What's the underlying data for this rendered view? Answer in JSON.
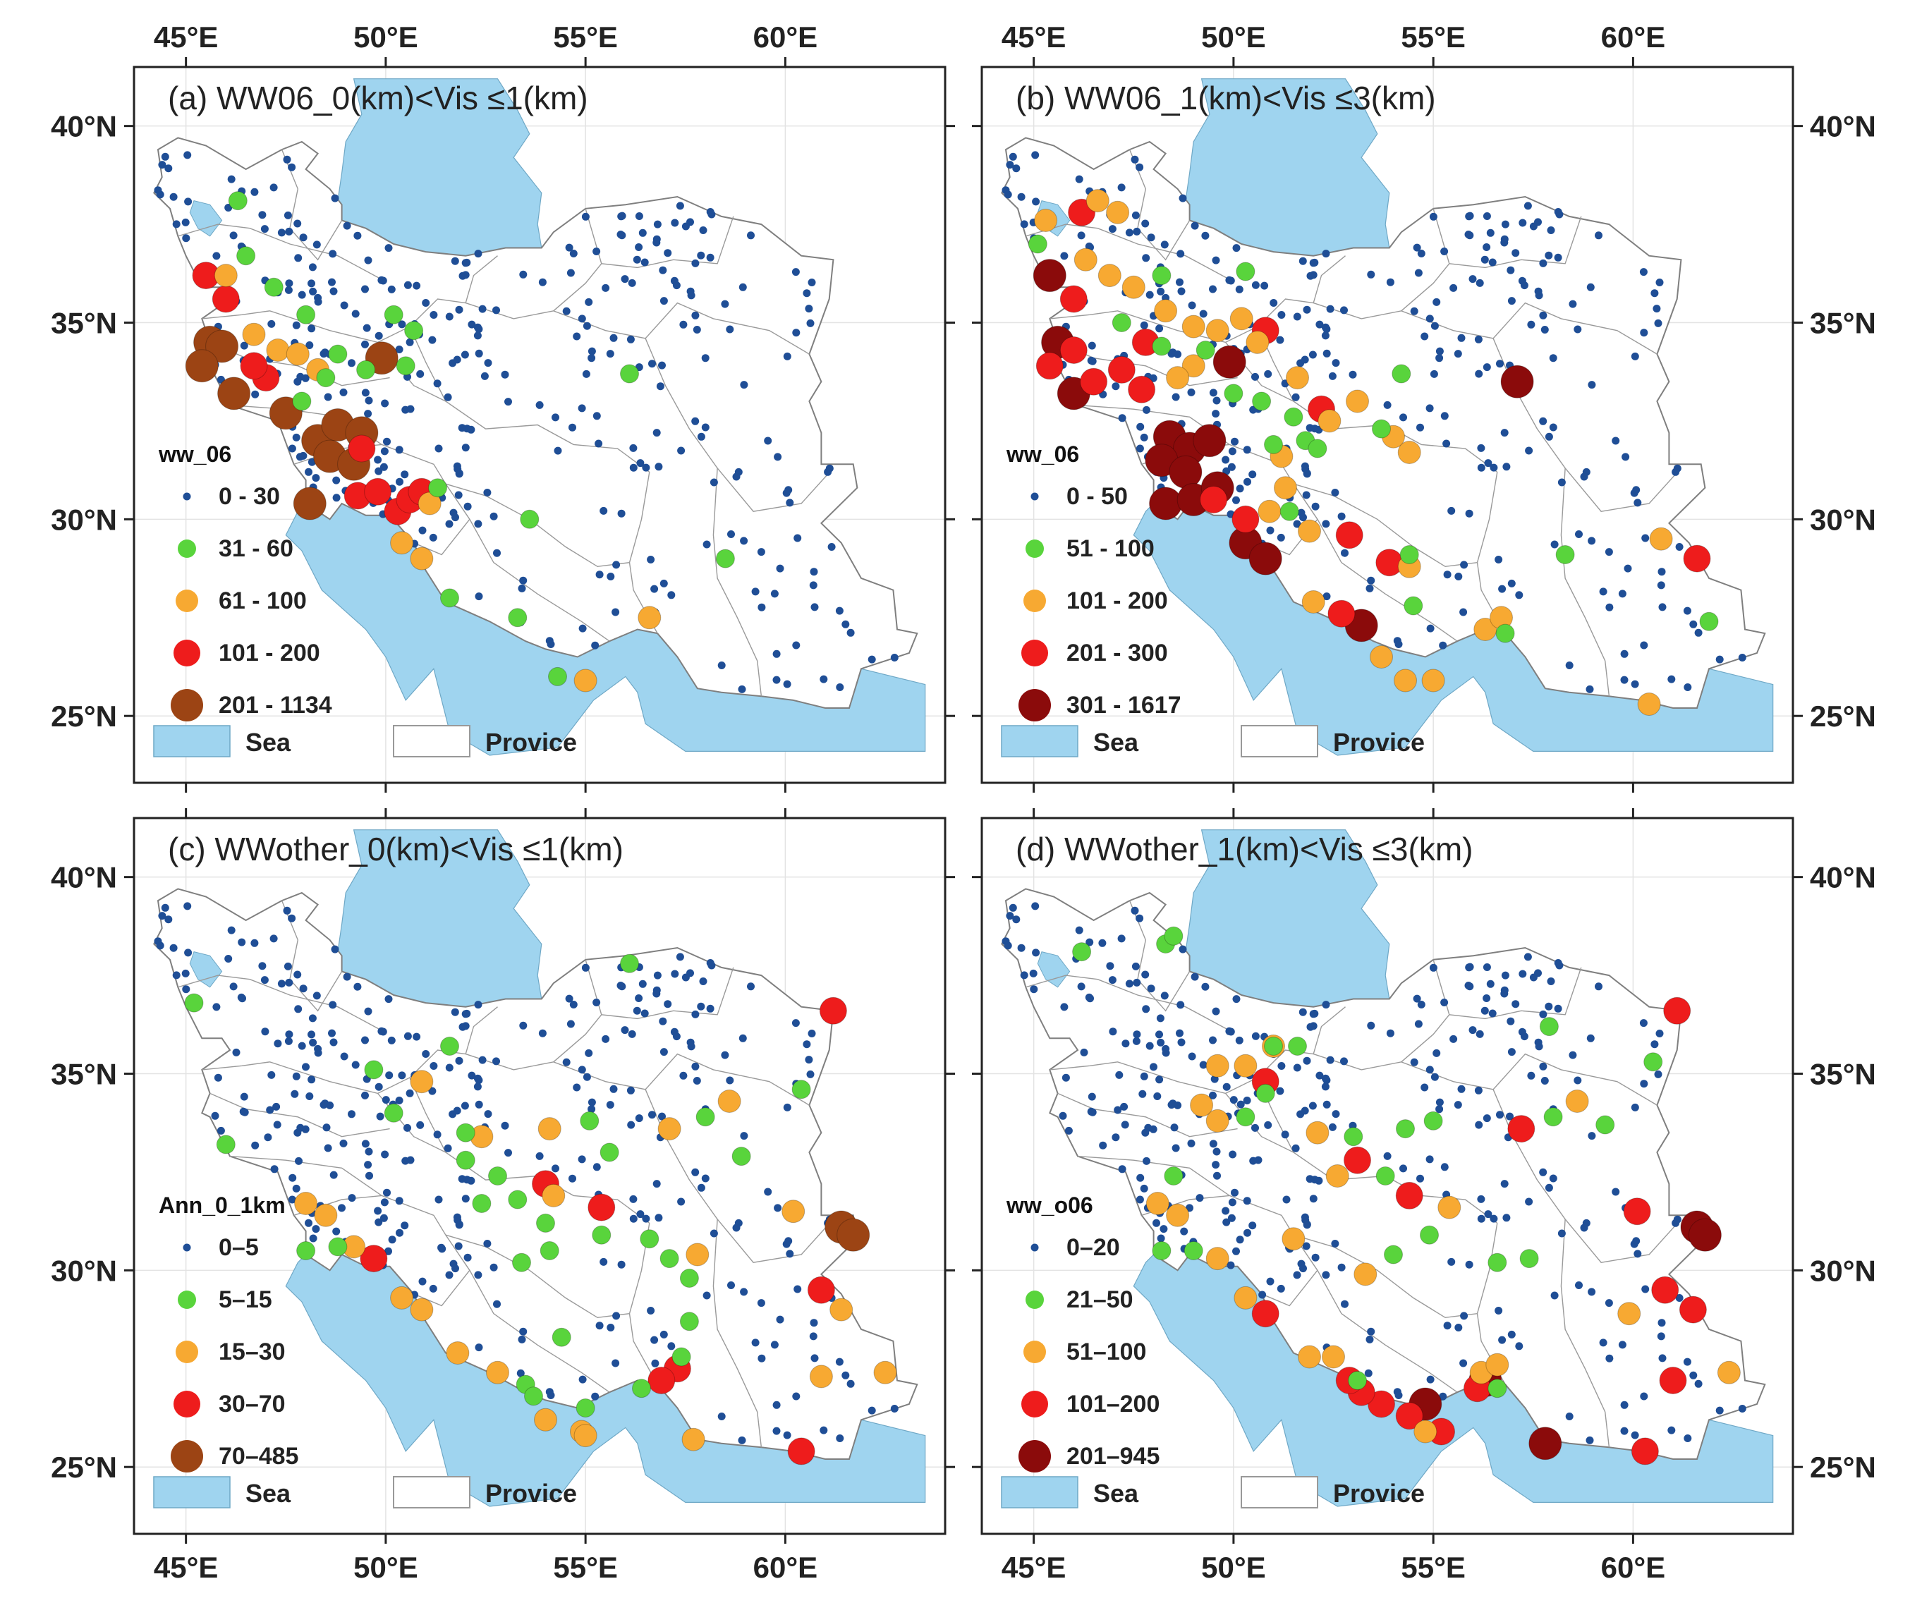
{
  "colors": {
    "sea": "#9fd4ef",
    "land": "#ffffff",
    "border": "#7f7f7f",
    "frame": "#222222",
    "c1": "#1f4e96",
    "c2": "#59d43c",
    "c3": "#f7a932",
    "c4": "#ee1c1c",
    "c5_brown": "#9c4414",
    "c5_dark": "#8b0b0b"
  },
  "axes": {
    "lon_ticks": [
      "45°E",
      "50°E",
      "55°E",
      "60°E"
    ],
    "lon_values": [
      45,
      50,
      55,
      60
    ],
    "lat_ticks": [
      "40°N",
      "35°N",
      "30°N",
      "25°N"
    ],
    "lat_values": [
      40,
      35,
      30,
      25
    ],
    "lon_range": [
      43.7,
      64.0
    ],
    "lat_range": [
      23.3,
      41.5
    ]
  },
  "legend_common": {
    "sea": "Sea",
    "province": "Provice"
  },
  "panels": [
    {
      "title": "(a) WW06_0(km)<Vis ≤1(km)",
      "legend_title": "ww_06",
      "classes": [
        "0 - 30",
        "31 - 60",
        "61 - 100",
        "101 - 200",
        "201 - 1134"
      ],
      "top_color": "c5_brown",
      "large_points": [
        [
          45.5,
          36.2,
          4
        ],
        [
          46.0,
          35.6,
          4
        ],
        [
          45.6,
          34.5,
          5
        ],
        [
          45.9,
          34.4,
          5
        ],
        [
          45.4,
          33.9,
          5
        ],
        [
          46.2,
          33.2,
          5
        ],
        [
          47.0,
          33.6,
          4
        ],
        [
          46.7,
          33.9,
          4
        ],
        [
          47.5,
          32.7,
          5
        ],
        [
          48.3,
          32.0,
          5
        ],
        [
          48.8,
          32.4,
          5
        ],
        [
          49.4,
          32.2,
          5
        ],
        [
          48.6,
          31.6,
          5
        ],
        [
          49.2,
          31.4,
          5
        ],
        [
          48.1,
          30.4,
          5
        ],
        [
          49.9,
          34.1,
          5
        ],
        [
          49.3,
          30.6,
          4
        ],
        [
          49.8,
          30.7,
          4
        ],
        [
          50.3,
          30.2,
          4
        ],
        [
          50.6,
          30.5,
          4
        ],
        [
          50.9,
          30.7,
          4
        ],
        [
          49.4,
          31.8,
          4
        ],
        [
          46.0,
          36.2,
          3
        ],
        [
          46.7,
          34.7,
          3
        ],
        [
          47.3,
          34.3,
          3
        ],
        [
          47.8,
          34.2,
          3
        ],
        [
          48.3,
          33.8,
          3
        ],
        [
          50.4,
          29.4,
          3
        ],
        [
          50.9,
          29.0,
          3
        ],
        [
          51.1,
          30.4,
          3
        ],
        [
          56.6,
          27.5,
          3
        ],
        [
          55.0,
          25.9,
          3
        ],
        [
          46.3,
          38.1,
          2
        ],
        [
          46.5,
          36.7,
          2
        ],
        [
          47.2,
          35.9,
          2
        ],
        [
          48.0,
          35.2,
          2
        ],
        [
          48.8,
          34.2,
          2
        ],
        [
          49.5,
          33.8,
          2
        ],
        [
          50.7,
          34.8,
          2
        ],
        [
          50.5,
          33.9,
          2
        ],
        [
          47.9,
          33.0,
          2
        ],
        [
          51.3,
          30.8,
          2
        ],
        [
          51.6,
          28.0,
          2
        ],
        [
          53.3,
          27.5,
          2
        ],
        [
          53.6,
          30.0,
          2
        ],
        [
          54.3,
          26.0,
          2
        ],
        [
          56.1,
          33.7,
          2
        ],
        [
          58.5,
          29.0,
          2
        ],
        [
          50.2,
          35.2,
          2
        ],
        [
          48.5,
          33.6,
          2
        ]
      ]
    },
    {
      "title": "(b) WW06_1(km)<Vis ≤3(km)",
      "legend_title": "ww_06",
      "classes": [
        "0 - 50",
        "51 - 100",
        "101 - 200",
        "201 - 300",
        "301 - 1617"
      ],
      "top_color": "c5_dark",
      "large_points": [
        [
          45.4,
          36.2,
          5
        ],
        [
          45.6,
          34.5,
          5
        ],
        [
          46.0,
          33.2,
          5
        ],
        [
          48.4,
          32.1,
          5
        ],
        [
          48.9,
          31.8,
          5
        ],
        [
          49.4,
          32.0,
          5
        ],
        [
          48.2,
          31.5,
          5
        ],
        [
          48.8,
          31.2,
          5
        ],
        [
          48.3,
          30.4,
          5
        ],
        [
          49.0,
          30.5,
          5
        ],
        [
          49.6,
          30.8,
          5
        ],
        [
          50.3,
          29.4,
          5
        ],
        [
          50.8,
          29.0,
          5
        ],
        [
          53.2,
          27.3,
          5
        ],
        [
          57.1,
          33.5,
          5
        ],
        [
          49.9,
          34.0,
          5
        ],
        [
          45.4,
          33.9,
          4
        ],
        [
          46.0,
          34.3,
          4
        ],
        [
          46.5,
          33.5,
          4
        ],
        [
          47.2,
          33.8,
          4
        ],
        [
          47.7,
          33.3,
          4
        ],
        [
          46.2,
          37.8,
          4
        ],
        [
          46.0,
          35.6,
          4
        ],
        [
          47.8,
          34.5,
          4
        ],
        [
          50.8,
          34.8,
          4
        ],
        [
          52.2,
          32.8,
          4
        ],
        [
          52.9,
          29.6,
          4
        ],
        [
          53.9,
          28.9,
          4
        ],
        [
          52.7,
          27.6,
          4
        ],
        [
          61.6,
          29.0,
          4
        ],
        [
          49.5,
          30.5,
          4
        ],
        [
          50.3,
          30.0,
          4
        ],
        [
          45.3,
          37.6,
          3
        ],
        [
          46.6,
          38.1,
          3
        ],
        [
          47.1,
          37.8,
          3
        ],
        [
          46.3,
          36.6,
          3
        ],
        [
          46.9,
          36.2,
          3
        ],
        [
          47.5,
          35.9,
          3
        ],
        [
          48.3,
          35.3,
          3
        ],
        [
          49.0,
          34.9,
          3
        ],
        [
          49.6,
          34.8,
          3
        ],
        [
          50.2,
          35.1,
          3
        ],
        [
          50.6,
          34.5,
          3
        ],
        [
          49.0,
          33.9,
          3
        ],
        [
          48.6,
          33.6,
          3
        ],
        [
          51.6,
          33.6,
          3
        ],
        [
          52.4,
          32.5,
          3
        ],
        [
          53.1,
          33.0,
          3
        ],
        [
          54.0,
          32.1,
          3
        ],
        [
          54.4,
          31.7,
          3
        ],
        [
          51.2,
          31.6,
          3
        ],
        [
          51.3,
          30.8,
          3
        ],
        [
          50.9,
          30.2,
          3
        ],
        [
          51.9,
          29.7,
          3
        ],
        [
          52.0,
          27.9,
          3
        ],
        [
          53.7,
          26.5,
          3
        ],
        [
          54.3,
          25.9,
          3
        ],
        [
          55.0,
          25.9,
          3
        ],
        [
          56.3,
          27.2,
          3
        ],
        [
          56.7,
          27.5,
          3
        ],
        [
          60.7,
          29.5,
          3
        ],
        [
          60.4,
          25.3,
          3
        ],
        [
          54.4,
          28.8,
          3
        ],
        [
          45.1,
          37.0,
          2
        ],
        [
          47.2,
          35.0,
          2
        ],
        [
          48.2,
          36.2,
          2
        ],
        [
          48.2,
          34.4,
          2
        ],
        [
          49.3,
          34.3,
          2
        ],
        [
          50.0,
          33.2,
          2
        ],
        [
          50.7,
          33.0,
          2
        ],
        [
          51.5,
          32.6,
          2
        ],
        [
          51.8,
          32.0,
          2
        ],
        [
          52.1,
          31.8,
          2
        ],
        [
          51.0,
          31.9,
          2
        ],
        [
          54.2,
          33.7,
          2
        ],
        [
          53.7,
          32.3,
          2
        ],
        [
          54.5,
          27.8,
          2
        ],
        [
          54.4,
          29.1,
          2
        ],
        [
          58.3,
          29.1,
          2
        ],
        [
          61.9,
          27.4,
          2
        ],
        [
          56.8,
          27.1,
          2
        ],
        [
          50.3,
          36.3,
          2
        ],
        [
          51.4,
          30.2,
          2
        ]
      ]
    },
    {
      "title": "(c) WWother_0(km)<Vis ≤1(km)",
      "legend_title": "Ann_0_1km",
      "classes": [
        "0–5",
        "5–15",
        "15–30",
        "30–70",
        "70–485"
      ],
      "top_color": "c5_brown",
      "large_points": [
        [
          61.4,
          31.1,
          5
        ],
        [
          61.7,
          30.9,
          5
        ],
        [
          61.2,
          36.6,
          4
        ],
        [
          55.4,
          31.6,
          4
        ],
        [
          54.0,
          32.2,
          4
        ],
        [
          60.9,
          29.5,
          4
        ],
        [
          57.3,
          27.5,
          4
        ],
        [
          56.9,
          27.2,
          4
        ],
        [
          60.4,
          25.4,
          4
        ],
        [
          49.7,
          30.3,
          4
        ],
        [
          48.0,
          31.7,
          3
        ],
        [
          48.5,
          31.4,
          3
        ],
        [
          49.2,
          30.6,
          3
        ],
        [
          50.4,
          29.3,
          3
        ],
        [
          50.9,
          29.0,
          3
        ],
        [
          51.8,
          27.9,
          3
        ],
        [
          52.8,
          27.4,
          3
        ],
        [
          54.0,
          26.2,
          3
        ],
        [
          54.9,
          25.9,
          3
        ],
        [
          55.0,
          25.8,
          3
        ],
        [
          57.7,
          25.7,
          3
        ],
        [
          61.4,
          29.0,
          3
        ],
        [
          60.9,
          27.3,
          3
        ],
        [
          62.5,
          27.4,
          3
        ],
        [
          60.2,
          31.5,
          3
        ],
        [
          58.6,
          34.3,
          3
        ],
        [
          57.1,
          33.6,
          3
        ],
        [
          57.8,
          30.4,
          3
        ],
        [
          54.1,
          33.6,
          3
        ],
        [
          52.4,
          33.4,
          3
        ],
        [
          50.9,
          34.8,
          3
        ],
        [
          54.2,
          31.9,
          3
        ],
        [
          45.2,
          36.8,
          2
        ],
        [
          46.0,
          33.2,
          2
        ],
        [
          49.7,
          35.1,
          2
        ],
        [
          50.2,
          34.0,
          2
        ],
        [
          51.6,
          35.7,
          2
        ],
        [
          52.0,
          33.5,
          2
        ],
        [
          52.0,
          32.8,
          2
        ],
        [
          52.8,
          32.4,
          2
        ],
        [
          53.3,
          31.8,
          2
        ],
        [
          54.0,
          31.2,
          2
        ],
        [
          55.1,
          33.8,
          2
        ],
        [
          55.6,
          33.0,
          2
        ],
        [
          55.4,
          30.9,
          2
        ],
        [
          56.6,
          30.8,
          2
        ],
        [
          57.1,
          30.3,
          2
        ],
        [
          57.6,
          29.8,
          2
        ],
        [
          57.6,
          28.7,
          2
        ],
        [
          57.4,
          27.8,
          2
        ],
        [
          56.4,
          27.0,
          2
        ],
        [
          58.0,
          33.9,
          2
        ],
        [
          58.9,
          32.9,
          2
        ],
        [
          60.4,
          34.6,
          2
        ],
        [
          56.1,
          37.8,
          2
        ],
        [
          53.4,
          30.2,
          2
        ],
        [
          54.1,
          30.5,
          2
        ],
        [
          54.4,
          28.3,
          2
        ],
        [
          53.5,
          27.1,
          2
        ],
        [
          53.7,
          26.8,
          2
        ],
        [
          55.0,
          26.5,
          2
        ],
        [
          48.0,
          30.5,
          2
        ],
        [
          48.8,
          30.6,
          2
        ],
        [
          52.4,
          31.7,
          2
        ]
      ]
    },
    {
      "title": "(d) WWother_1(km)<Vis ≤3(km)",
      "legend_title": "ww_o06",
      "classes": [
        "0–20",
        "21–50",
        "51–100",
        "101–200",
        "201–945"
      ],
      "top_color": "c5_dark",
      "large_points": [
        [
          61.6,
          31.1,
          5
        ],
        [
          61.8,
          30.9,
          5
        ],
        [
          56.3,
          27.2,
          5
        ],
        [
          57.8,
          25.6,
          5
        ],
        [
          54.8,
          26.6,
          5
        ],
        [
          61.1,
          36.6,
          4
        ],
        [
          57.2,
          33.6,
          4
        ],
        [
          60.1,
          31.5,
          4
        ],
        [
          60.8,
          29.5,
          4
        ],
        [
          61.5,
          29.0,
          4
        ],
        [
          61.0,
          27.2,
          4
        ],
        [
          60.3,
          25.4,
          4
        ],
        [
          55.2,
          25.9,
          4
        ],
        [
          54.4,
          26.3,
          4
        ],
        [
          53.7,
          26.6,
          4
        ],
        [
          53.2,
          26.9,
          4
        ],
        [
          52.9,
          27.2,
          4
        ],
        [
          56.1,
          27.0,
          4
        ],
        [
          50.8,
          28.9,
          4
        ],
        [
          53.1,
          32.8,
          4
        ],
        [
          54.4,
          31.9,
          4
        ],
        [
          50.8,
          34.8,
          4
        ],
        [
          48.1,
          31.7,
          3
        ],
        [
          48.6,
          31.4,
          3
        ],
        [
          49.6,
          30.3,
          3
        ],
        [
          50.3,
          29.3,
          3
        ],
        [
          51.9,
          27.8,
          3
        ],
        [
          52.5,
          27.8,
          3
        ],
        [
          54.8,
          25.9,
          3
        ],
        [
          56.2,
          27.4,
          3
        ],
        [
          56.6,
          27.6,
          3
        ],
        [
          62.4,
          27.4,
          3
        ],
        [
          59.9,
          28.9,
          3
        ],
        [
          58.6,
          34.3,
          3
        ],
        [
          55.4,
          31.6,
          3
        ],
        [
          52.1,
          33.5,
          3
        ],
        [
          52.6,
          32.4,
          3
        ],
        [
          51.5,
          30.8,
          3
        ],
        [
          53.3,
          29.9,
          3
        ],
        [
          49.2,
          34.2,
          3
        ],
        [
          49.6,
          33.8,
          3
        ],
        [
          50.3,
          35.2,
          3
        ],
        [
          49.6,
          35.2,
          3
        ],
        [
          51.0,
          35.7,
          3
        ],
        [
          46.2,
          38.1,
          2
        ],
        [
          48.3,
          38.3,
          2
        ],
        [
          48.5,
          38.5,
          2
        ],
        [
          48.5,
          32.4,
          2
        ],
        [
          48.2,
          30.5,
          2
        ],
        [
          49.0,
          30.5,
          2
        ],
        [
          50.8,
          34.5,
          2
        ],
        [
          50.3,
          33.9,
          2
        ],
        [
          51.0,
          35.7,
          2
        ],
        [
          51.6,
          35.7,
          2
        ],
        [
          53.0,
          33.4,
          2
        ],
        [
          53.8,
          32.4,
          2
        ],
        [
          54.0,
          30.4,
          2
        ],
        [
          55.0,
          33.8,
          2
        ],
        [
          54.3,
          33.6,
          2
        ],
        [
          56.6,
          30.2,
          2
        ],
        [
          57.4,
          30.3,
          2
        ],
        [
          58.0,
          33.9,
          2
        ],
        [
          59.3,
          33.7,
          2
        ],
        [
          60.5,
          35.3,
          2
        ],
        [
          57.9,
          36.2,
          2
        ],
        [
          54.9,
          30.9,
          2
        ],
        [
          53.1,
          27.2,
          2
        ],
        [
          56.6,
          27.0,
          2
        ]
      ]
    }
  ]
}
